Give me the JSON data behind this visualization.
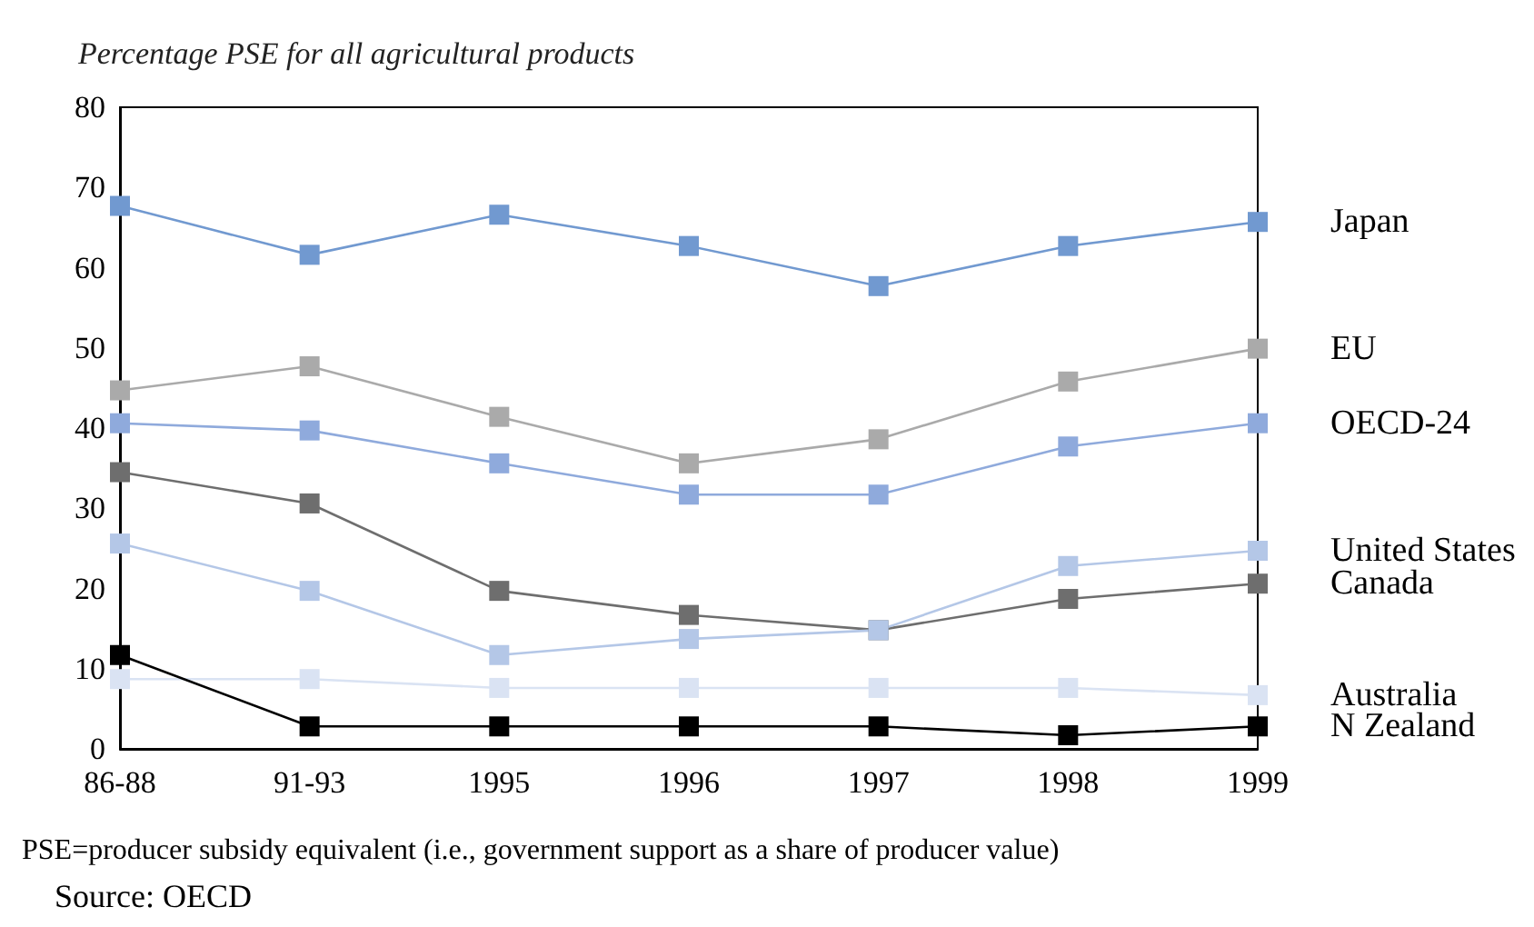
{
  "chart_data": {
    "type": "line",
    "title": "Percentage PSE for all agricultural products",
    "categories": [
      "86-88",
      "91-93",
      "1995",
      "1996",
      "1997",
      "1998",
      "1999"
    ],
    "series": [
      {
        "name": "Japan",
        "color": "#7199d0",
        "values": [
          67.7,
          61.6,
          66.6,
          62.7,
          57.7,
          62.7,
          65.7
        ]
      },
      {
        "name": "EU",
        "color": "#aaaaaa",
        "values": [
          44.7,
          47.7,
          41.4,
          35.6,
          38.6,
          45.8,
          49.9
        ]
      },
      {
        "name": "OECD-24",
        "color": "#8faadc",
        "values": [
          40.6,
          39.7,
          35.6,
          31.7,
          31.7,
          37.7,
          40.6
        ]
      },
      {
        "name": "Canada",
        "color": "#6e6e6e",
        "values": [
          34.5,
          30.6,
          19.7,
          16.7,
          14.8,
          18.7,
          20.6
        ]
      },
      {
        "name": "United States",
        "color": "#b4c7e7",
        "values": [
          25.6,
          19.7,
          11.7,
          13.7,
          14.8,
          22.8,
          24.7
        ]
      },
      {
        "name": "Australia",
        "color": "#dae3f3",
        "values": [
          8.7,
          8.7,
          7.6,
          7.6,
          7.6,
          7.6,
          6.7
        ]
      },
      {
        "name": "N Zealand",
        "color": "#000000",
        "values": [
          11.7,
          2.8,
          2.8,
          2.8,
          2.8,
          1.7,
          2.8
        ]
      }
    ],
    "ylim": [
      0,
      80
    ],
    "yticks": [
      0,
      10,
      20,
      30,
      40,
      50,
      60,
      70,
      80
    ],
    "grid": false,
    "marker": "square",
    "line_style": "solid",
    "annotations": [
      "PSE=producer subsidy equivalent (i.e., government support as a share of producer value)",
      "Source: OECD"
    ]
  }
}
